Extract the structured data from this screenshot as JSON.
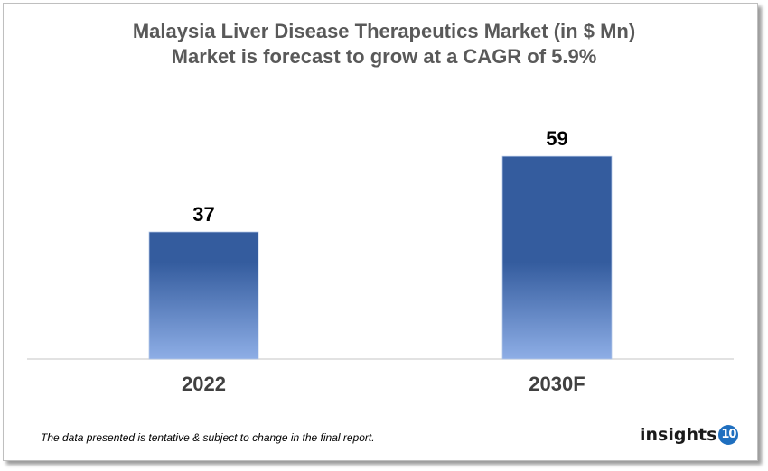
{
  "chart_data": {
    "type": "bar",
    "title": "Malaysia Liver Disease Therapeutics Market (in $ Mn)",
    "subtitle": "Market is forecast to grow at a CAGR of 5.9%",
    "categories": [
      "2022",
      "2030F"
    ],
    "values": [
      37,
      59
    ],
    "data_labels": [
      "37",
      "59"
    ],
    "xlabel": "",
    "ylabel": "",
    "grid": false,
    "colors": {
      "bar_top": "#345c9e",
      "bar_bottom": "#8eaee6"
    }
  },
  "footer": {
    "note": "The data presented is tentative & subject to change in the final report.",
    "logo_text": "insights",
    "logo_number": "10"
  }
}
